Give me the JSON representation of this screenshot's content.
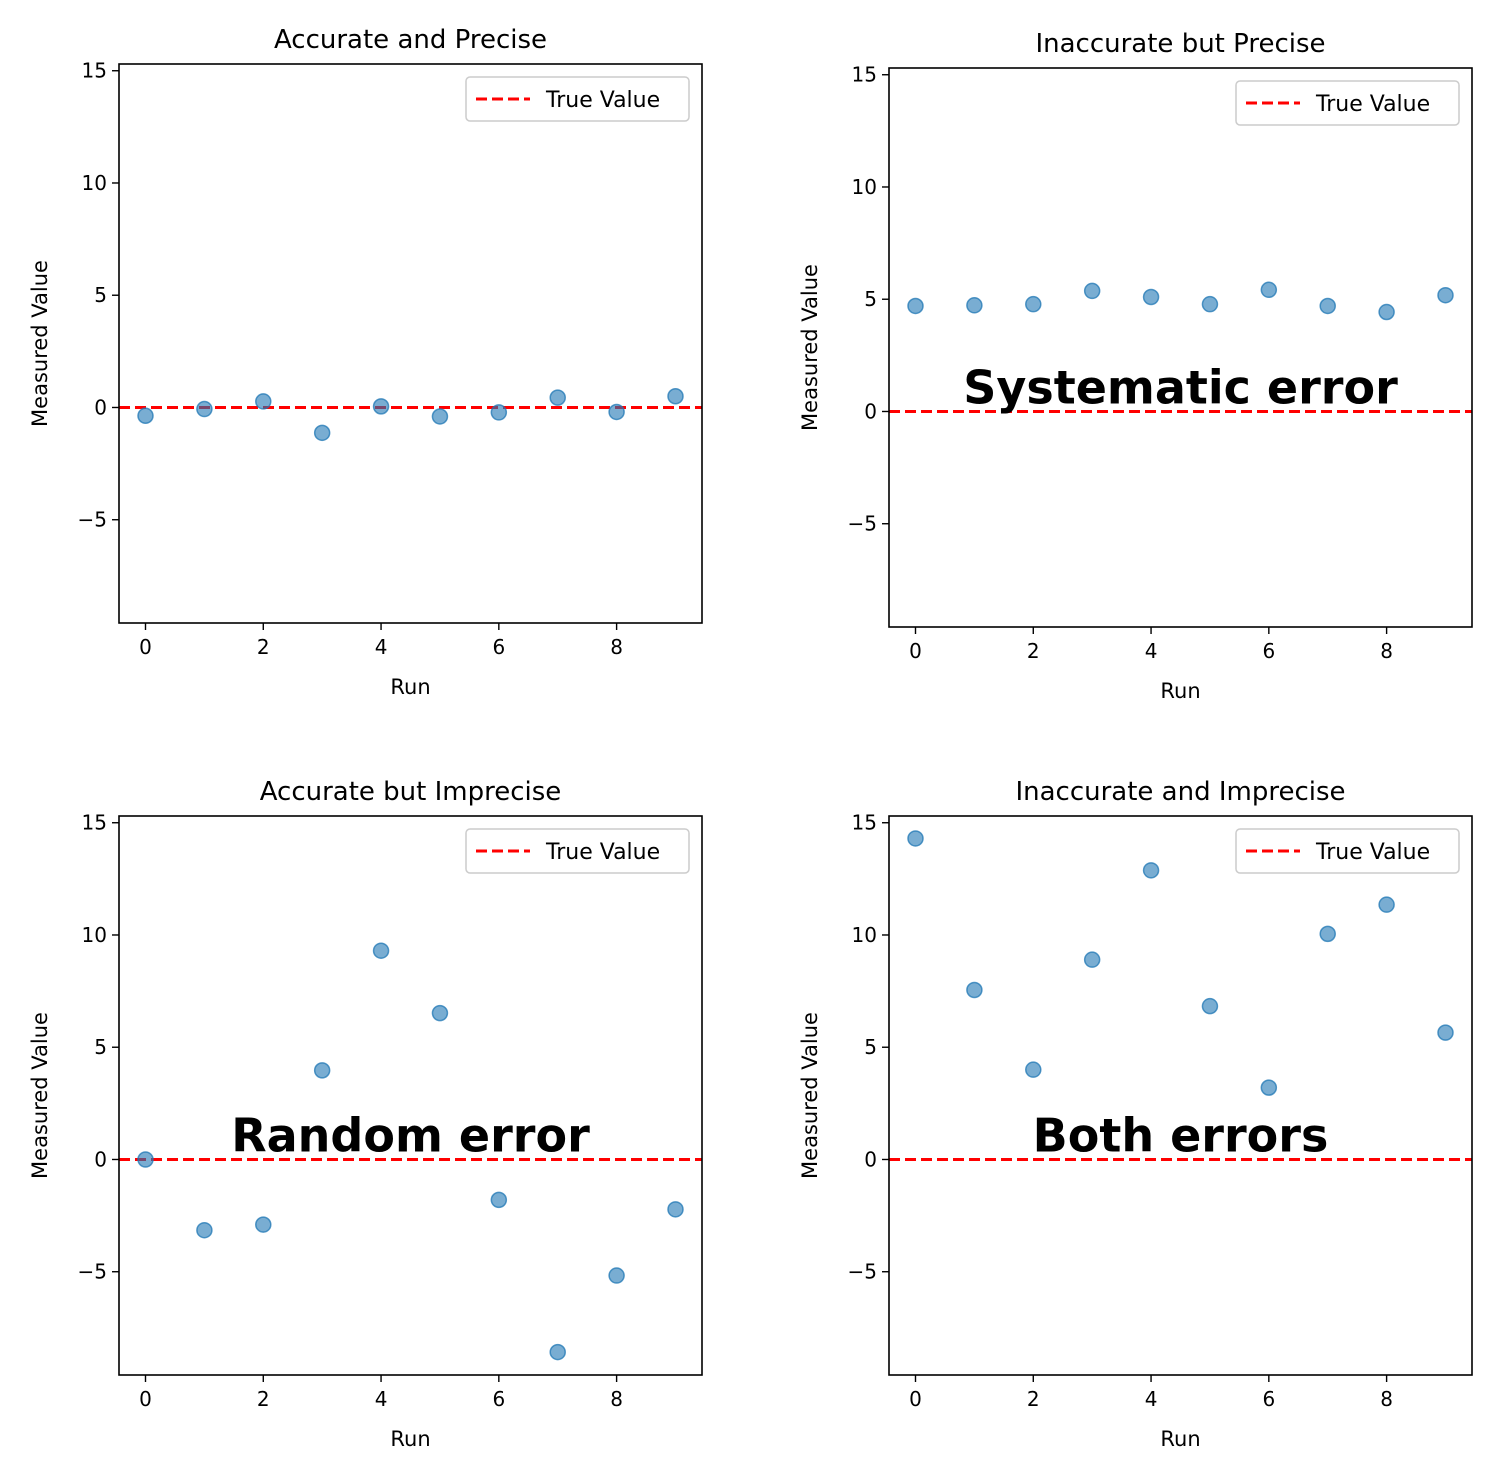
{
  "chart_data": [
    {
      "type": "scatter",
      "title": "Accurate and Precise",
      "xlabel": "Run",
      "ylabel": "Measured Value",
      "xlim": [
        -0.45,
        9.45
      ],
      "ylim": [
        -9.6,
        15.3
      ],
      "xticks": [
        0,
        2,
        4,
        6,
        8
      ],
      "yticks": [
        -5,
        0,
        5,
        10,
        15
      ],
      "grid": false,
      "legend_position": "top-right",
      "true_value": 0,
      "series": [
        {
          "name": "",
          "color": "#1f77b4",
          "x": [
            0,
            1,
            2,
            3,
            4,
            5,
            6,
            7,
            8,
            9
          ],
          "y": [
            -0.37,
            -0.07,
            0.27,
            -1.13,
            0.05,
            -0.4,
            -0.22,
            0.44,
            -0.2,
            0.5
          ]
        }
      ],
      "reference_line": {
        "name": "True Value",
        "value": 0,
        "color": "#ff0000",
        "style": "dashed"
      },
      "annotation": ""
    },
    {
      "type": "scatter",
      "title": "Inaccurate but Precise",
      "xlabel": "Run",
      "ylabel": "Measured Value",
      "xlim": [
        -0.45,
        9.45
      ],
      "ylim": [
        -9.6,
        15.3
      ],
      "xticks": [
        0,
        2,
        4,
        6,
        8
      ],
      "yticks": [
        -5,
        0,
        5,
        10,
        15
      ],
      "grid": false,
      "legend_position": "top-right",
      "true_value": 0,
      "series": [
        {
          "name": "",
          "color": "#1f77b4",
          "x": [
            0,
            1,
            2,
            3,
            4,
            5,
            6,
            7,
            8,
            9
          ],
          "y": [
            4.7,
            4.73,
            4.78,
            5.37,
            5.1,
            4.78,
            5.42,
            4.7,
            4.43,
            5.18
          ]
        }
      ],
      "reference_line": {
        "name": "True Value",
        "value": 0,
        "color": "#ff0000",
        "style": "dashed"
      },
      "annotation": "Systematic error"
    },
    {
      "type": "scatter",
      "title": "Accurate but Imprecise",
      "xlabel": "Run",
      "ylabel": "Measured Value",
      "xlim": [
        -0.45,
        9.45
      ],
      "ylim": [
        -9.6,
        15.3
      ],
      "xticks": [
        0,
        2,
        4,
        6,
        8
      ],
      "yticks": [
        -5,
        0,
        5,
        10,
        15
      ],
      "grid": false,
      "legend_position": "top-right",
      "true_value": 0,
      "series": [
        {
          "name": "",
          "color": "#1f77b4",
          "x": [
            0,
            1,
            2,
            3,
            4,
            5,
            6,
            7,
            8,
            9
          ],
          "y": [
            0.0,
            -3.15,
            -2.9,
            3.97,
            9.3,
            6.52,
            -1.8,
            -8.58,
            -5.17,
            -2.22
          ]
        }
      ],
      "reference_line": {
        "name": "True Value",
        "value": 0,
        "color": "#ff0000",
        "style": "dashed"
      },
      "annotation": "Random error"
    },
    {
      "type": "scatter",
      "title": "Inaccurate and Imprecise",
      "xlabel": "Run",
      "ylabel": "Measured Value",
      "xlim": [
        -0.45,
        9.45
      ],
      "ylim": [
        -9.6,
        15.3
      ],
      "xticks": [
        0,
        2,
        4,
        6,
        8
      ],
      "yticks": [
        -5,
        0,
        5,
        10,
        15
      ],
      "grid": false,
      "legend_position": "top-right",
      "true_value": 0,
      "series": [
        {
          "name": "",
          "color": "#1f77b4",
          "x": [
            0,
            1,
            2,
            3,
            4,
            5,
            6,
            7,
            8,
            9
          ],
          "y": [
            14.3,
            7.55,
            4.0,
            8.9,
            12.88,
            6.83,
            3.2,
            10.05,
            11.35,
            5.65
          ]
        }
      ],
      "reference_line": {
        "name": "True Value",
        "value": 0,
        "color": "#ff0000",
        "style": "dashed"
      },
      "annotation": "Both errors"
    }
  ]
}
